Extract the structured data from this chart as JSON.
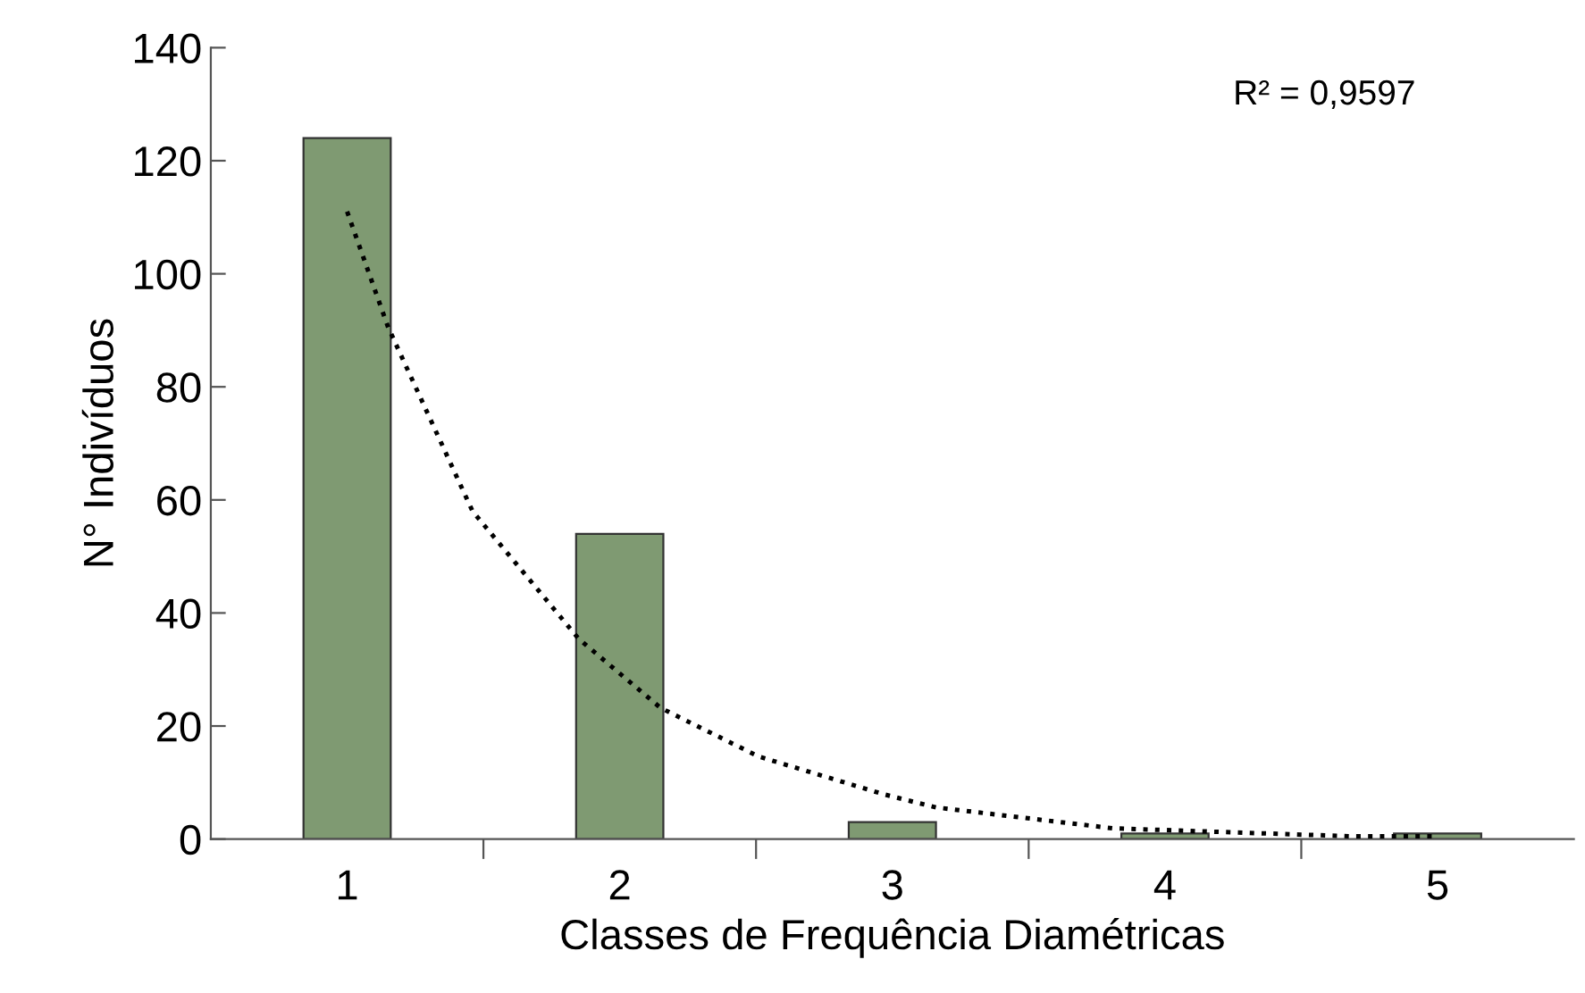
{
  "chart_data": {
    "type": "bar",
    "xlabel": "Classes de Frequência Diamétricas",
    "ylabel": "N° Indivíduos",
    "x": [
      1,
      2,
      3,
      4,
      5
    ],
    "xlim": [
      0.5,
      5.5
    ],
    "xticks": [
      1,
      {
        "value": 1.5,
        "label": null
      },
      2,
      {
        "value": 2.5,
        "label": null
      },
      3,
      {
        "value": 3.5,
        "label": null
      },
      4,
      {
        "value": 4.5,
        "label": null
      },
      5
    ],
    "ylim": [
      0,
      140
    ],
    "yticks": [
      0,
      20,
      40,
      60,
      80,
      100,
      120,
      140
    ],
    "annotations": [
      "R² = 0,9597"
    ],
    "series": [
      {
        "color": "#7f9a72",
        "values": [
          124,
          54,
          3,
          1,
          1
        ]
      },
      {
        "type": "line",
        "color": "#000000",
        "line_style": "dotted",
        "x": [
          1,
          1.15,
          1.46,
          1.85,
          2.15,
          2.51,
          2.97,
          3.16,
          3.81,
          4.68,
          4.99
        ],
        "values": [
          111,
          90.6,
          58,
          35.4,
          23.2,
          14.6,
          7.9,
          5.6,
          1.9,
          0.5,
          0.5
        ]
      }
    ]
  }
}
